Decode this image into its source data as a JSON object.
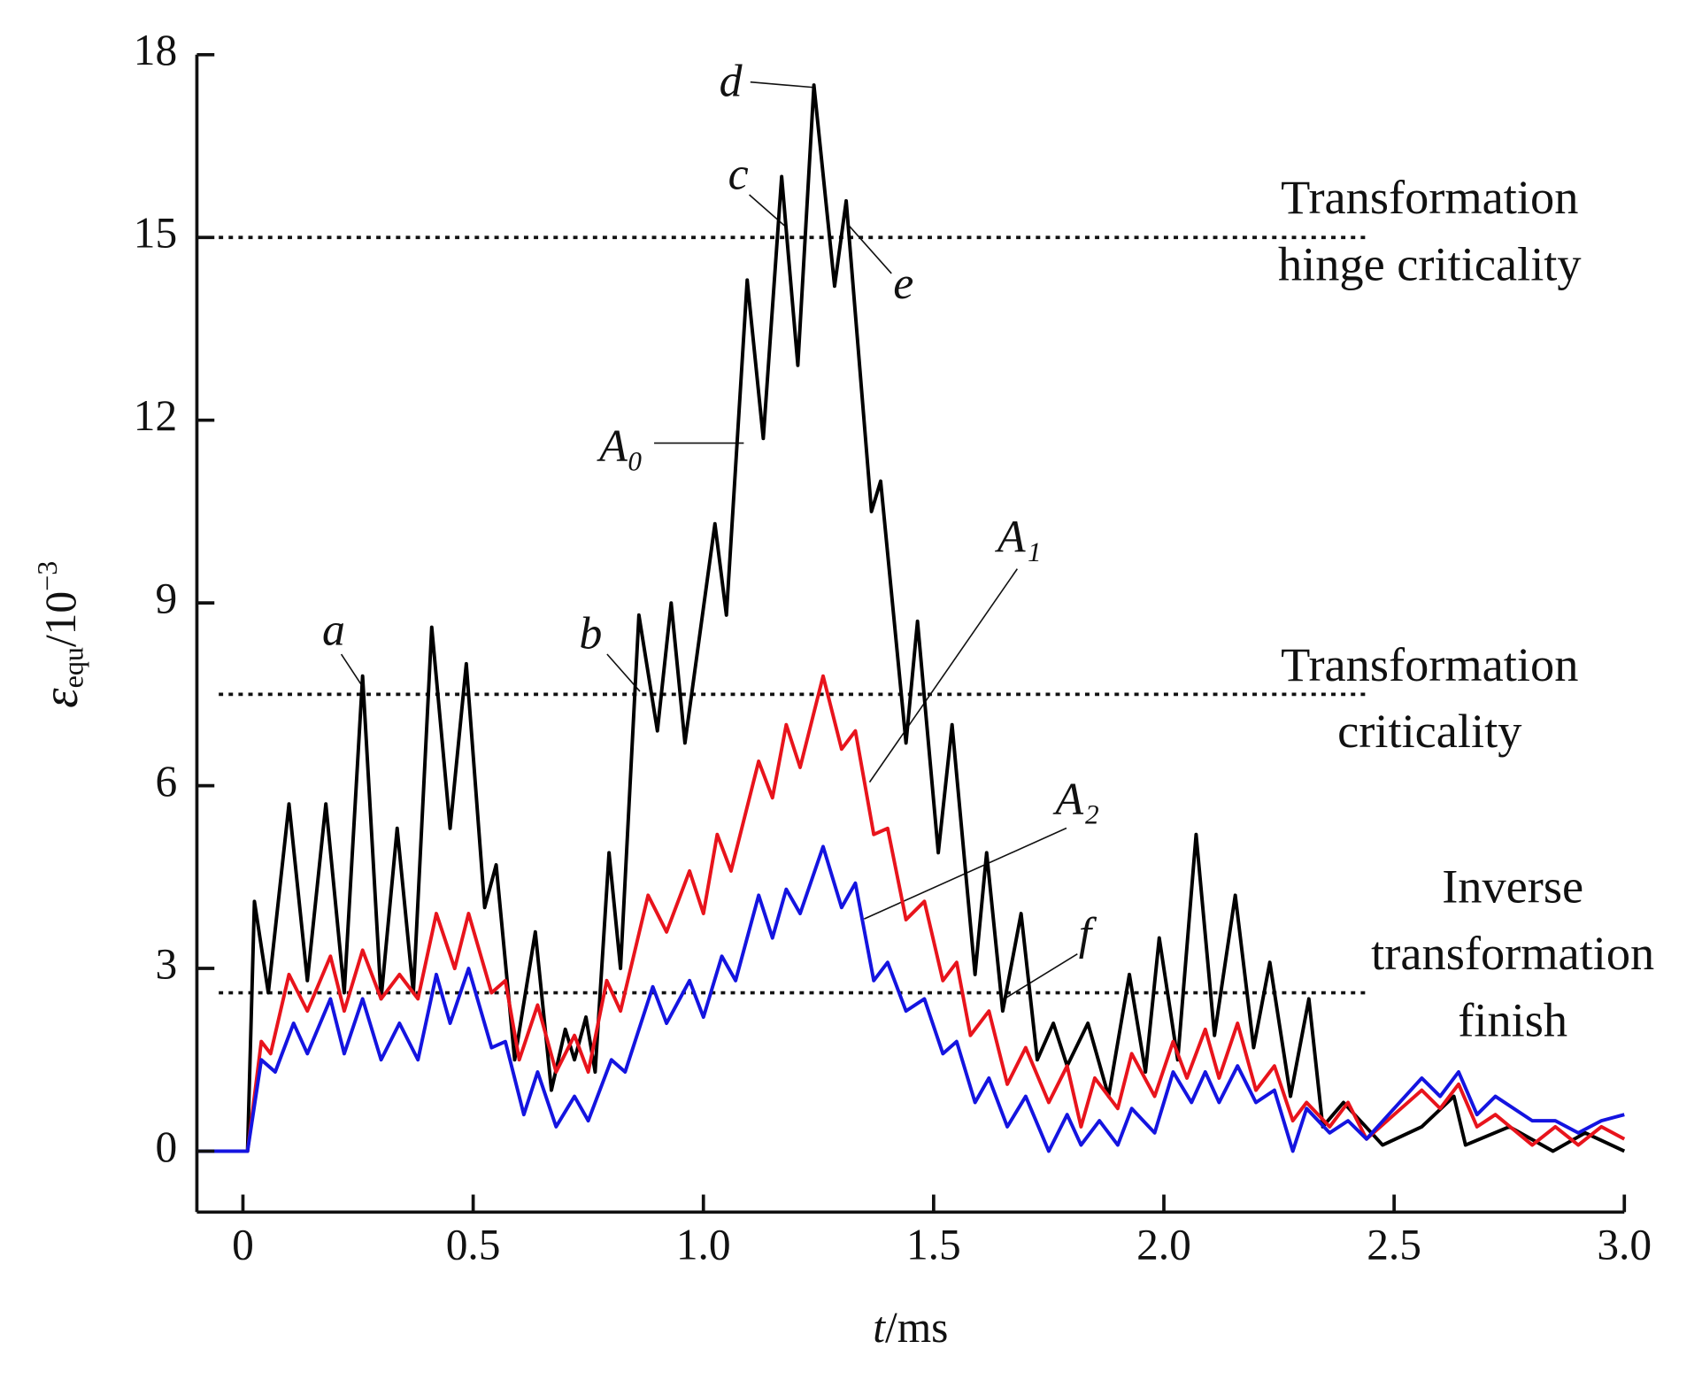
{
  "chart_data": {
    "type": "line",
    "x_label": {
      "symbol": "t",
      "unit": "/ms"
    },
    "y_label": {
      "symbol": "ε",
      "subscript": "equ",
      "unit": "/10",
      "exponent": "−3"
    },
    "xlim": [
      -0.1,
      3.0
    ],
    "ylim": [
      -1,
      18
    ],
    "xticks": [
      0,
      0.5,
      {
        "value": 1,
        "label": "1.0"
      },
      1.5,
      {
        "value": 2,
        "label": "2.0"
      },
      2.5,
      {
        "value": 3,
        "label": "3.0"
      }
    ],
    "yticks": [
      0,
      3,
      6,
      9,
      12,
      15,
      18
    ],
    "grid": false,
    "series": [
      {
        "name": "A₀",
        "color": "#000000",
        "x": [
          -0.1,
          0,
          0.01,
          0.025,
          0.055,
          0.1,
          0.14,
          0.18,
          0.22,
          0.26,
          0.3,
          0.335,
          0.37,
          0.41,
          0.45,
          0.485,
          0.525,
          0.55,
          0.59,
          0.635,
          0.67,
          0.7,
          0.72,
          0.745,
          0.765,
          0.795,
          0.82,
          0.86,
          0.9,
          0.93,
          0.96,
          1.025,
          1.05,
          1.095,
          1.13,
          1.17,
          1.205,
          1.24,
          1.285,
          1.31,
          1.365,
          1.385,
          1.44,
          1.465,
          1.51,
          1.54,
          1.59,
          1.615,
          1.65,
          1.69,
          1.725,
          1.76,
          1.79,
          1.835,
          1.88,
          1.925,
          1.96,
          1.99,
          2.03,
          2.07,
          2.11,
          2.155,
          2.195,
          2.23,
          2.275,
          2.315,
          2.345,
          2.39,
          2.475,
          2.56,
          2.63,
          2.655,
          2.75,
          2.845,
          2.915,
          3.0
        ],
        "values": [
          0,
          0,
          0,
          4.1,
          2.6,
          5.7,
          2.8,
          5.7,
          2.6,
          7.8,
          2.5,
          5.3,
          2.6,
          8.6,
          5.3,
          8.0,
          4.0,
          4.7,
          1.5,
          3.6,
          1.0,
          2.0,
          1.5,
          2.2,
          1.3,
          4.9,
          3.0,
          8.8,
          6.9,
          9.0,
          6.7,
          10.3,
          8.8,
          14.3,
          11.7,
          16.0,
          12.9,
          17.5,
          14.2,
          15.6,
          10.5,
          11.0,
          6.7,
          8.7,
          4.9,
          7.0,
          2.9,
          4.9,
          2.3,
          3.9,
          1.5,
          2.1,
          1.4,
          2.1,
          0.9,
          2.9,
          1.3,
          3.5,
          1.5,
          5.2,
          1.9,
          4.2,
          1.7,
          3.1,
          0.9,
          2.5,
          0.4,
          0.8,
          0.1,
          0.4,
          0.9,
          0.1,
          0.4,
          0.0,
          0.3,
          0.0
        ]
      },
      {
        "name": "A₁",
        "color": "#e8141c",
        "x": [
          -0.1,
          0,
          0.01,
          0.04,
          0.06,
          0.1,
          0.14,
          0.19,
          0.22,
          0.26,
          0.3,
          0.34,
          0.38,
          0.42,
          0.46,
          0.49,
          0.54,
          0.57,
          0.6,
          0.64,
          0.68,
          0.72,
          0.75,
          0.79,
          0.82,
          0.88,
          0.92,
          0.97,
          1.0,
          1.03,
          1.06,
          1.12,
          1.15,
          1.18,
          1.21,
          1.26,
          1.3,
          1.33,
          1.37,
          1.4,
          1.44,
          1.48,
          1.52,
          1.55,
          1.58,
          1.62,
          1.66,
          1.7,
          1.75,
          1.79,
          1.82,
          1.85,
          1.9,
          1.93,
          1.98,
          2.02,
          2.05,
          2.09,
          2.12,
          2.16,
          2.2,
          2.24,
          2.28,
          2.31,
          2.36,
          2.4,
          2.44,
          2.5,
          2.56,
          2.6,
          2.64,
          2.68,
          2.72,
          2.8,
          2.85,
          2.9,
          2.95,
          3.0
        ],
        "values": [
          0,
          0,
          0,
          1.8,
          1.6,
          2.9,
          2.3,
          3.2,
          2.3,
          3.3,
          2.5,
          2.9,
          2.5,
          3.9,
          3.0,
          3.9,
          2.6,
          2.8,
          1.5,
          2.4,
          1.3,
          1.9,
          1.3,
          2.8,
          2.3,
          4.2,
          3.6,
          4.6,
          3.9,
          5.2,
          4.6,
          6.4,
          5.8,
          7.0,
          6.3,
          7.8,
          6.6,
          6.9,
          5.2,
          5.3,
          3.8,
          4.1,
          2.8,
          3.1,
          1.9,
          2.3,
          1.1,
          1.7,
          0.8,
          1.4,
          0.4,
          1.2,
          0.7,
          1.6,
          0.9,
          1.8,
          1.2,
          2.0,
          1.2,
          2.1,
          1.0,
          1.4,
          0.5,
          0.8,
          0.4,
          0.8,
          0.2,
          0.6,
          1.0,
          0.7,
          1.1,
          0.4,
          0.6,
          0.1,
          0.4,
          0.1,
          0.4,
          0.2
        ]
      },
      {
        "name": "A₂",
        "color": "#1414e0",
        "x": [
          -0.1,
          0,
          0.01,
          0.04,
          0.07,
          0.11,
          0.14,
          0.19,
          0.22,
          0.26,
          0.3,
          0.34,
          0.38,
          0.42,
          0.45,
          0.49,
          0.54,
          0.57,
          0.61,
          0.64,
          0.68,
          0.72,
          0.75,
          0.8,
          0.83,
          0.89,
          0.92,
          0.97,
          1.0,
          1.04,
          1.07,
          1.12,
          1.15,
          1.18,
          1.21,
          1.26,
          1.3,
          1.33,
          1.37,
          1.4,
          1.44,
          1.48,
          1.52,
          1.55,
          1.59,
          1.62,
          1.66,
          1.7,
          1.75,
          1.79,
          1.82,
          1.86,
          1.9,
          1.93,
          1.98,
          2.02,
          2.06,
          2.09,
          2.12,
          2.16,
          2.2,
          2.24,
          2.28,
          2.31,
          2.36,
          2.4,
          2.44,
          2.5,
          2.56,
          2.6,
          2.64,
          2.68,
          2.72,
          2.8,
          2.85,
          2.9,
          2.95,
          3.0
        ],
        "values": [
          0,
          0,
          0,
          1.5,
          1.3,
          2.1,
          1.6,
          2.5,
          1.6,
          2.5,
          1.5,
          2.1,
          1.5,
          2.9,
          2.1,
          3.0,
          1.7,
          1.8,
          0.6,
          1.3,
          0.4,
          0.9,
          0.5,
          1.5,
          1.3,
          2.7,
          2.1,
          2.8,
          2.2,
          3.2,
          2.8,
          4.2,
          3.5,
          4.3,
          3.9,
          5.0,
          4.0,
          4.4,
          2.8,
          3.1,
          2.3,
          2.5,
          1.6,
          1.8,
          0.8,
          1.2,
          0.4,
          0.9,
          0.0,
          0.6,
          0.1,
          0.5,
          0.1,
          0.7,
          0.3,
          1.3,
          0.8,
          1.3,
          0.8,
          1.4,
          0.8,
          1.0,
          0.0,
          0.7,
          0.3,
          0.5,
          0.2,
          0.7,
          1.2,
          0.9,
          1.3,
          0.6,
          0.9,
          0.5,
          0.5,
          0.3,
          0.5,
          0.6
        ]
      }
    ],
    "reference_lines": [
      {
        "value": 15,
        "label": [
          "Transformation",
          "hinge criticality"
        ]
      },
      {
        "value": 7.5,
        "label": [
          "Transformation",
          "criticality"
        ]
      },
      {
        "value": 2.6,
        "label": [
          "Inverse",
          "transformation",
          "finish"
        ]
      }
    ],
    "annotations": [
      "a",
      "b",
      "c",
      "d",
      "e",
      "f"
    ]
  }
}
